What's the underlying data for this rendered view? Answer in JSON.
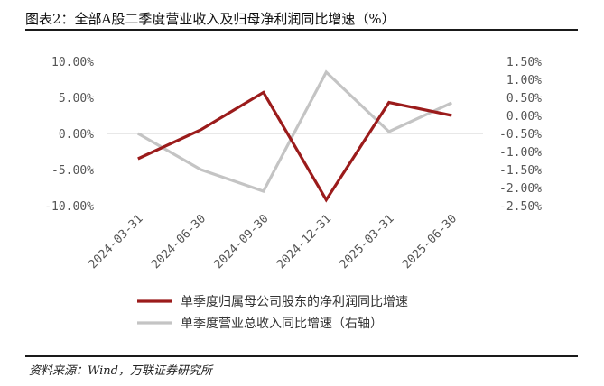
{
  "header": {
    "title": "图表2：全部A股二季度营业收入及归母净利润同比增速（%）"
  },
  "source": {
    "text": "资料来源：Wind，万联证券研究所"
  },
  "chart_data": {
    "type": "line",
    "categories": [
      "2024-03-31",
      "2024-06-30",
      "2024-09-30",
      "2024-12-31",
      "2025-03-31",
      "2025-06-30"
    ],
    "series": [
      {
        "name": "单季度归属母公司股东的净利润同比增速",
        "axis": "left",
        "color": "#9b1b1b",
        "values": [
          -3.5,
          0.5,
          5.7,
          -9.2,
          4.3,
          2.5
        ]
      },
      {
        "name": "单季度营业总收入同比增速（右轴）",
        "axis": "right",
        "color": "#c4c4c4",
        "values": [
          -0.5,
          -1.5,
          -2.1,
          1.2,
          -0.45,
          0.35
        ]
      }
    ],
    "y_left": {
      "range": [
        -10,
        10
      ],
      "ticks": [
        "10.00%",
        "5.00%",
        "0.00%",
        "-5.00%",
        "-10.00%"
      ],
      "values": [
        10,
        5,
        0,
        -5,
        -10
      ]
    },
    "y_right": {
      "range": [
        -2.5,
        1.5
      ],
      "ticks": [
        "1.50%",
        "1.00%",
        "0.50%",
        "0.00%",
        "-0.50%",
        "-1.00%",
        "-1.50%",
        "-2.00%",
        "-2.50%"
      ],
      "values": [
        1.5,
        1.0,
        0.5,
        0.0,
        -0.5,
        -1.0,
        -1.5,
        -2.0,
        -2.5
      ]
    },
    "grid": false,
    "legend": "bottom",
    "title": "",
    "xlabel": "",
    "ylabel": ""
  }
}
